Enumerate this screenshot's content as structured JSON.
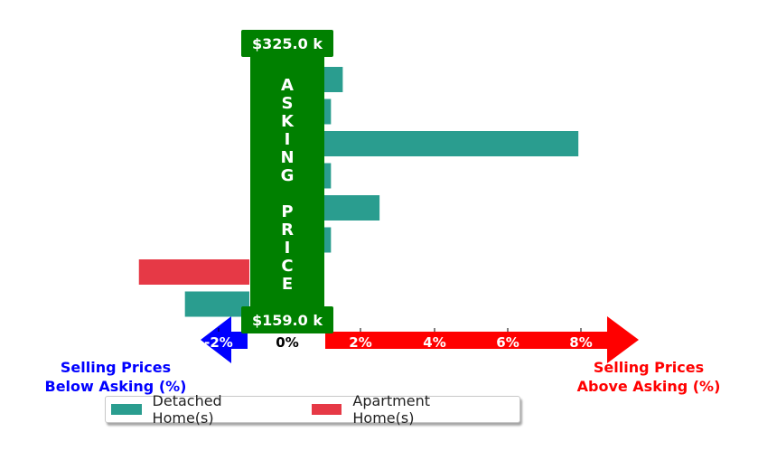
{
  "chart_data": {
    "type": "bar",
    "orientation": "horizontal",
    "x_tick_labels": [
      "-2%",
      "0%",
      "2%",
      "4%",
      "6%",
      "8%"
    ],
    "series": [
      {
        "name": "Detached Home(s)",
        "color": "#2a9d8f",
        "bars": [
          {
            "row": 0,
            "value": 0.5
          },
          {
            "row": 1,
            "value": 0.18
          },
          {
            "row": 2,
            "value": 6.9
          },
          {
            "row": 3,
            "value": 0.18
          },
          {
            "row": 4,
            "value": 1.5
          },
          {
            "row": 5,
            "value": 0.18
          },
          {
            "row": 7,
            "value": -1.75
          }
        ]
      },
      {
        "name": "Apartment Home(s)",
        "color": "#e63946",
        "bars": [
          {
            "row": 6,
            "value": -3.0
          }
        ]
      }
    ],
    "pillar": {
      "top_label": "$325.0 k",
      "bottom_label": "$159.0 k",
      "letters": [
        "A",
        "S",
        "K",
        "I",
        "N",
        "G",
        "",
        "P",
        "R",
        "I",
        "C",
        "E"
      ],
      "color": "#008000"
    },
    "arrows": {
      "left_color": "#0000ff",
      "right_color": "#ff0000"
    },
    "below_label": [
      "Selling Prices",
      "Below Asking (%)"
    ],
    "above_label": [
      "Selling Prices",
      "Above Asking (%)"
    ]
  }
}
